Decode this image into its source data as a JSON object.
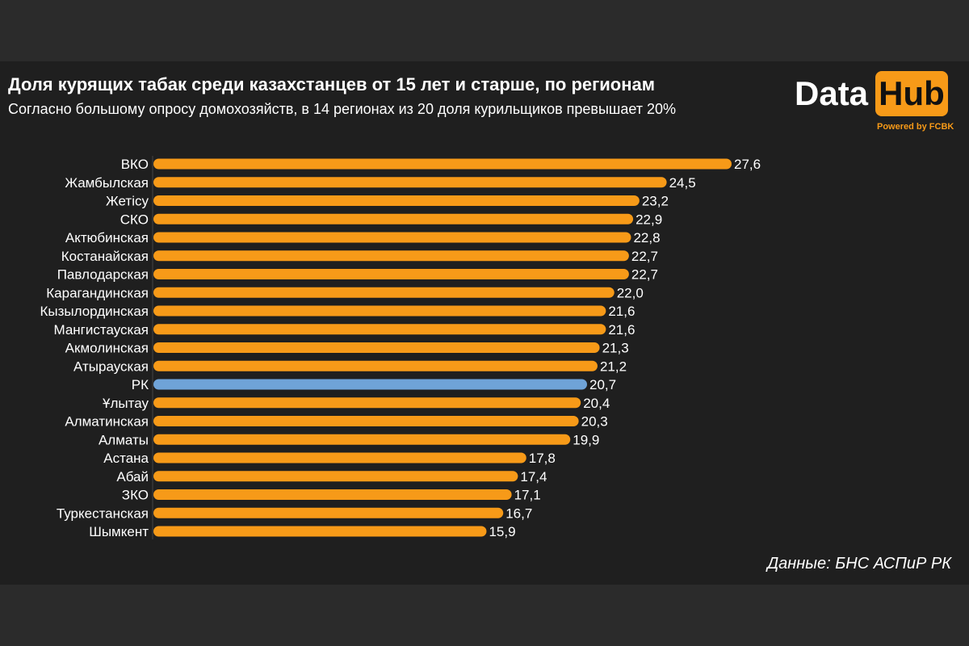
{
  "header": {
    "title": "Доля курящих табак среди казахстанцев от 15 лет и старше, по регионам",
    "subtitle": "Согласно большому опросу домохозяйств, в 14 регионах из 20 доля курильщиков превышает 20%"
  },
  "logo": {
    "word1": "Data",
    "word2": "Hub",
    "powered": "Powered by FCBK"
  },
  "footer": {
    "source": "Данные: БНС АСПиР РК"
  },
  "colors": {
    "bar": "#f79a18",
    "highlight": "#6fa3d8",
    "background": "#1f1f1f",
    "outer": "#2b2b2b",
    "text": "#ffffff"
  },
  "chart_data": {
    "type": "bar",
    "orientation": "horizontal",
    "title": "Доля курящих табак среди казахстанцев от 15 лет и старше, по регионам",
    "subtitle": "Согласно большому опросу домохозяйств, в 14 регионах из 20 доля курильщиков превышает 20%",
    "categories": [
      "ВКО",
      "Жамбылская",
      "Жетісу",
      "СКО",
      "Актюбинская",
      "Костанайская",
      "Павлодарская",
      "Карагандинская",
      "Кызылординская",
      "Мангистауская",
      "Акмолинская",
      "Атырауская",
      "РК",
      "Ұлытау",
      "Алматинская",
      "Алматы",
      "Астана",
      "Абай",
      "ЗКО",
      "Туркестанская",
      "Шымкент"
    ],
    "values": [
      27.6,
      24.5,
      23.2,
      22.9,
      22.8,
      22.7,
      22.7,
      22.0,
      21.6,
      21.6,
      21.3,
      21.2,
      20.7,
      20.4,
      20.3,
      19.9,
      17.8,
      17.4,
      17.1,
      16.7,
      15.9
    ],
    "value_labels": [
      "27,6",
      "24,5",
      "23,2",
      "22,9",
      "22,8",
      "22,7",
      "22,7",
      "22,0",
      "21,6",
      "21,6",
      "21,3",
      "21,2",
      "20,7",
      "20,4",
      "20,3",
      "19,9",
      "17,8",
      "17,4",
      "17,1",
      "16,7",
      "15,9"
    ],
    "highlight_category": "РК",
    "xlim": [
      0,
      27.6
    ],
    "grid": false,
    "legend": "none"
  }
}
